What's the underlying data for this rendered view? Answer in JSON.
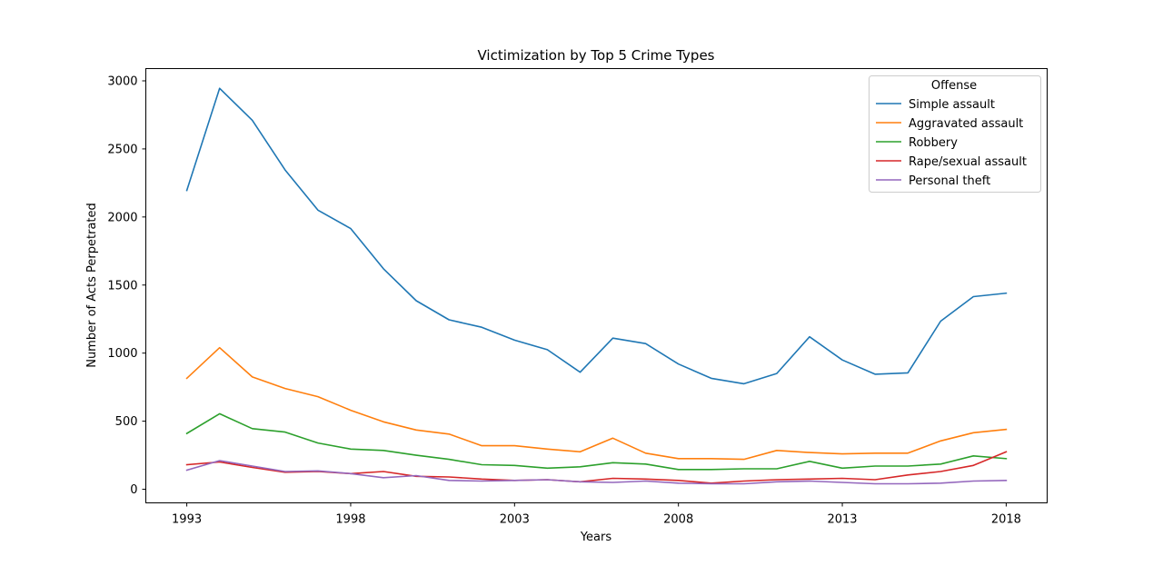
{
  "chart_data": {
    "type": "line",
    "title": "Victimization by Top 5 Crime Types",
    "xlabel": "Years",
    "ylabel": "Number of Acts Perpetrated",
    "x": [
      1993,
      1994,
      1995,
      1996,
      1997,
      1998,
      1999,
      2000,
      2001,
      2002,
      2003,
      2004,
      2005,
      2006,
      2007,
      2008,
      2009,
      2010,
      2011,
      2012,
      2013,
      2014,
      2015,
      2016,
      2017,
      2018
    ],
    "xlim": [
      1991.75,
      2019.25
    ],
    "ylim": [
      -100,
      3090
    ],
    "xticks": [
      1993,
      1998,
      2003,
      2008,
      2013,
      2018
    ],
    "yticks": [
      0,
      500,
      1000,
      1500,
      2000,
      2500,
      3000
    ],
    "grid": false,
    "legend": {
      "title": "Offense",
      "position": "top-right"
    },
    "series": [
      {
        "name": "Simple assault",
        "color": "#1f77b4",
        "values": [
          2195,
          2945,
          2710,
          2345,
          2050,
          1915,
          1620,
          1385,
          1245,
          1190,
          1095,
          1025,
          860,
          1110,
          1070,
          920,
          815,
          775,
          850,
          1120,
          950,
          845,
          855,
          1235,
          1415,
          1440
        ]
      },
      {
        "name": "Aggravated assault",
        "color": "#ff7f0e",
        "values": [
          815,
          1040,
          825,
          740,
          680,
          580,
          495,
          435,
          405,
          320,
          320,
          295,
          275,
          375,
          265,
          225,
          225,
          220,
          285,
          270,
          260,
          265,
          265,
          355,
          415,
          440
        ]
      },
      {
        "name": "Robbery",
        "color": "#2ca02c",
        "values": [
          410,
          555,
          445,
          420,
          340,
          295,
          285,
          250,
          220,
          180,
          175,
          155,
          165,
          195,
          185,
          145,
          145,
          150,
          150,
          205,
          155,
          170,
          170,
          185,
          245,
          225
        ]
      },
      {
        "name": "Rape/sexual assault",
        "color": "#d62728",
        "values": [
          180,
          200,
          160,
          125,
          130,
          115,
          130,
          95,
          90,
          75,
          65,
          70,
          55,
          80,
          75,
          65,
          45,
          60,
          70,
          75,
          80,
          70,
          105,
          130,
          175,
          275
        ]
      },
      {
        "name": "Personal theft",
        "color": "#9467bd",
        "values": [
          140,
          210,
          170,
          130,
          135,
          115,
          85,
          100,
          65,
          60,
          65,
          70,
          55,
          50,
          60,
          45,
          40,
          40,
          55,
          60,
          50,
          40,
          40,
          45,
          60,
          65
        ]
      }
    ]
  }
}
